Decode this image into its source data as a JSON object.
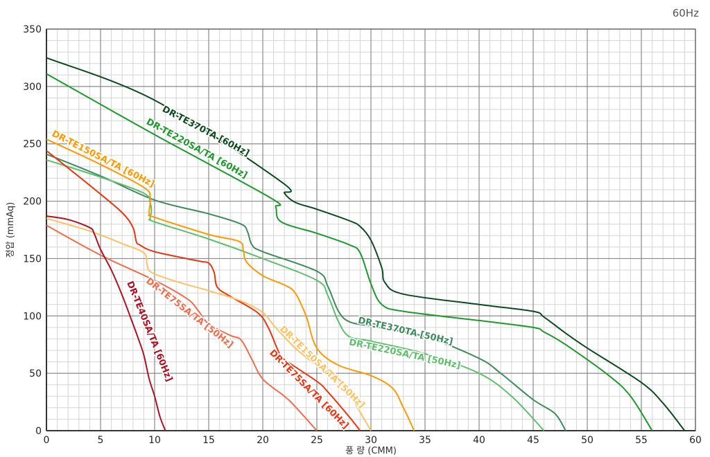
{
  "chart_data": {
    "type": "line",
    "title": "60Hz",
    "xlabel": "풍 량 (CMM)",
    "ylabel": "정압 (mmAq)",
    "xlim": [
      0,
      60
    ],
    "ylim": [
      0,
      350
    ],
    "xticks": [
      0,
      5,
      10,
      15,
      20,
      25,
      30,
      35,
      40,
      45,
      50,
      55,
      60
    ],
    "yticks": [
      0,
      50,
      100,
      150,
      200,
      250,
      300,
      350
    ],
    "grid": {
      "major": true,
      "minor": true,
      "minor_x_step": 1,
      "minor_y_step": 10
    },
    "legend": "inline labels",
    "series": [
      {
        "name": "DR-TE370TA [60Hz]",
        "color": "#0b4a1f",
        "points": [
          [
            0,
            325
          ],
          [
            10,
            288
          ],
          [
            21.7,
            217
          ],
          [
            22,
            207
          ],
          [
            23,
            199
          ],
          [
            25,
            193
          ],
          [
            28,
            183
          ],
          [
            29,
            178
          ],
          [
            30,
            166
          ],
          [
            31,
            142
          ],
          [
            31.3,
            129
          ],
          [
            33,
            119
          ],
          [
            40,
            110
          ],
          [
            45,
            104
          ],
          [
            46,
            99
          ],
          [
            48,
            85
          ],
          [
            50,
            72
          ],
          [
            55,
            42
          ],
          [
            57,
            24
          ],
          [
            59,
            0
          ]
        ]
      },
      {
        "name": "DR-TE220SA/TA [60Hz]",
        "color": "#1a9a2a",
        "points": [
          [
            0,
            311
          ],
          [
            10,
            258
          ],
          [
            20.7,
            203
          ],
          [
            21.2,
            195
          ],
          [
            21.7,
            182
          ],
          [
            25,
            172
          ],
          [
            28,
            162
          ],
          [
            29,
            155
          ],
          [
            30,
            128
          ],
          [
            31,
            110
          ],
          [
            33,
            104
          ],
          [
            40,
            96
          ],
          [
            45,
            90
          ],
          [
            46,
            86
          ],
          [
            48,
            75
          ],
          [
            52,
            48
          ],
          [
            54,
            30
          ],
          [
            56,
            0
          ]
        ]
      },
      {
        "name": "DR-TE370TA [50Hz]",
        "color": "#3d8a5e",
        "points": [
          [
            0,
            241
          ],
          [
            5,
            222
          ],
          [
            10,
            201
          ],
          [
            15,
            189
          ],
          [
            18,
            180
          ],
          [
            18.6,
            173
          ],
          [
            19,
            162
          ],
          [
            20,
            156
          ],
          [
            25,
            139
          ],
          [
            26,
            126
          ],
          [
            27,
            104
          ],
          [
            28,
            95
          ],
          [
            30,
            91
          ],
          [
            35,
            82
          ],
          [
            40,
            63
          ],
          [
            42,
            50
          ],
          [
            45,
            27
          ],
          [
            47,
            15
          ],
          [
            48,
            0
          ]
        ]
      },
      {
        "name": "DR-TE220SA/TA [50Hz]",
        "color": "#5cbf6a",
        "points": [
          [
            0,
            236
          ],
          [
            5,
            221
          ],
          [
            9,
            207
          ],
          [
            9.6,
            198
          ],
          [
            9.7,
            191
          ],
          [
            9.6,
            185
          ],
          [
            10,
            182
          ],
          [
            15,
            167
          ],
          [
            20,
            150
          ],
          [
            25,
            131
          ],
          [
            26,
            118
          ],
          [
            27,
            95
          ],
          [
            28,
            82
          ],
          [
            30,
            78
          ],
          [
            35,
            67
          ],
          [
            40,
            50
          ],
          [
            43,
            30
          ],
          [
            46,
            0
          ]
        ]
      },
      {
        "name": "DR-TE150SA/TA [60Hz]",
        "color": "#ff9900",
        "points": [
          [
            0,
            254
          ],
          [
            5,
            232
          ],
          [
            9,
            212
          ],
          [
            9.6,
            203
          ],
          [
            9.5,
            189
          ],
          [
            10,
            186
          ],
          [
            15,
            171
          ],
          [
            17.8,
            165
          ],
          [
            18.2,
            157
          ],
          [
            18.5,
            147
          ],
          [
            20,
            135
          ],
          [
            22,
            127
          ],
          [
            23,
            120
          ],
          [
            24,
            100
          ],
          [
            25,
            72
          ],
          [
            27,
            57
          ],
          [
            30,
            48
          ],
          [
            32,
            37
          ],
          [
            33,
            20
          ],
          [
            34,
            0
          ]
        ]
      },
      {
        "name": "DR-TE75SA/TA [60Hz]",
        "color": "#ee3311",
        "points": [
          [
            0,
            244
          ],
          [
            4.5,
            210
          ],
          [
            7,
            190
          ],
          [
            8,
            177
          ],
          [
            8.3,
            165
          ],
          [
            8.6,
            162
          ],
          [
            10,
            156
          ],
          [
            14,
            148
          ],
          [
            15,
            146
          ],
          [
            15.5,
            138
          ],
          [
            15.8,
            125
          ],
          [
            17,
            117
          ],
          [
            19.5,
            103
          ],
          [
            20.5,
            90
          ],
          [
            21.5,
            68
          ],
          [
            22,
            62
          ],
          [
            25,
            43
          ],
          [
            26,
            34
          ],
          [
            28,
            12
          ],
          [
            29,
            0
          ]
        ]
      },
      {
        "name": "DR-TE75SA/TA [50Hz]",
        "color": "#f26b4a",
        "points": [
          [
            0,
            179
          ],
          [
            5,
            153
          ],
          [
            10,
            131
          ],
          [
            13,
            115
          ],
          [
            14,
            105
          ],
          [
            15,
            93
          ],
          [
            17,
            83
          ],
          [
            18,
            79
          ],
          [
            19,
            62
          ],
          [
            20,
            45
          ],
          [
            22,
            30
          ],
          [
            23,
            21
          ],
          [
            25,
            0
          ]
        ]
      },
      {
        "name": "DR-TE150SA/TA [50Hz]",
        "color": "#ffc060",
        "points": [
          [
            0,
            185
          ],
          [
            4,
            174
          ],
          [
            7,
            163
          ],
          [
            9,
            155
          ],
          [
            9.3,
            145
          ],
          [
            9.7,
            138
          ],
          [
            12,
            130
          ],
          [
            15,
            122
          ],
          [
            18,
            113
          ],
          [
            20,
            103
          ],
          [
            21,
            92
          ],
          [
            23,
            72
          ],
          [
            25,
            57
          ],
          [
            27,
            45
          ],
          [
            28,
            32
          ],
          [
            30,
            0
          ]
        ]
      },
      {
        "name": "DR-TE40SA/TA [60Hz]",
        "color": "#b01020",
        "points": [
          [
            0,
            187
          ],
          [
            2,
            184
          ],
          [
            4,
            177
          ],
          [
            4.4,
            172
          ],
          [
            5,
            158
          ],
          [
            6,
            140
          ],
          [
            7,
            118
          ],
          [
            8,
            93
          ],
          [
            8.5,
            80
          ],
          [
            9,
            66
          ],
          [
            9.5,
            45
          ],
          [
            10,
            30
          ],
          [
            10.5,
            12
          ],
          [
            11,
            0
          ]
        ]
      }
    ]
  }
}
